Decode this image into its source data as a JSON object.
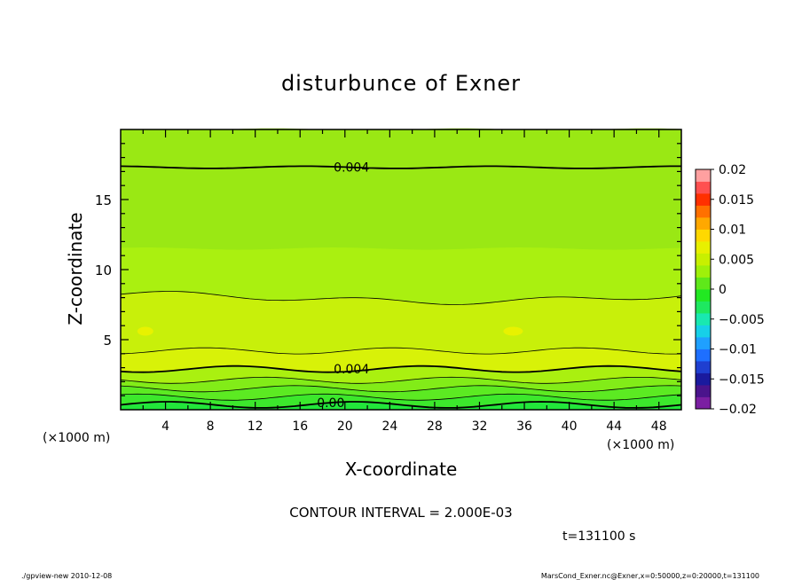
{
  "chart_data": {
    "type": "contour",
    "title": "disturbunce of Exner",
    "xlabel": "X-coordinate",
    "ylabel": "Z-coordinate",
    "x_unit_left": "(×1000 m)",
    "x_unit_right": "(×1000 m)",
    "xlim": [
      0,
      50
    ],
    "ylim": [
      0,
      20
    ],
    "x_ticks": [
      4,
      8,
      12,
      16,
      20,
      24,
      28,
      32,
      36,
      40,
      44,
      48
    ],
    "y_ticks": [
      5,
      10,
      15
    ],
    "contour_interval_text": "CONTOUR INTERVAL = 2.000E-03",
    "time_text": "t=131100 s",
    "contour_labels": [
      {
        "text": "0.004",
        "x": 19,
        "z": 17.3
      },
      {
        "text": "0.004",
        "x": 19,
        "z": 2.9
      },
      {
        "text": "0.00",
        "x": 17.5,
        "z": 0.5
      }
    ],
    "colorbar": {
      "tick_labels": [
        "0.02",
        "0.015",
        "0.01",
        "0.005",
        "0",
        "−0.005",
        "−0.01",
        "−0.015",
        "−0.02"
      ],
      "min": -0.02,
      "max": 0.02,
      "colors": [
        "#7b1fa2",
        "#4a148c",
        "#1a1a9e",
        "#1f3fd0",
        "#1e6fff",
        "#1fa0ff",
        "#17d0e8",
        "#19e8b0",
        "#1ee860",
        "#22e822",
        "#5fe81a",
        "#9ff00a",
        "#c8f000",
        "#e8f000",
        "#ffd800",
        "#ffa800",
        "#ff7000",
        "#ff3000",
        "#ff5050",
        "#ffa0a0"
      ]
    },
    "bands": [
      {
        "color": "#22e63a"
      },
      {
        "color": "#3ce82c"
      },
      {
        "color": "#5cea22"
      },
      {
        "color": "#82ec18"
      },
      {
        "color": "#aaf010"
      },
      {
        "color": "#c8f00a"
      },
      {
        "color": "#d8f208"
      },
      {
        "color": "#c8f00a"
      },
      {
        "color": "#aaf010"
      },
      {
        "color": "#9ae814"
      }
    ]
  },
  "footer": {
    "left": "./gpview-new  2010-12-08",
    "right": "MarsCond_Exner.nc@Exner,x=0:50000,z=0:20000,t=131100"
  }
}
